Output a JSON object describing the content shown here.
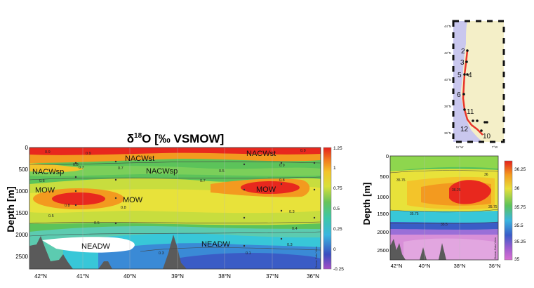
{
  "colors": {
    "red": "#e8281e",
    "orange": "#f39a1f",
    "yellow": "#f3ea2c",
    "green": "#5cc35a",
    "cyan": "#38c7d8",
    "blue": "#3a5cc6",
    "purple": "#9a4fc4",
    "magenta": "#d86fd0",
    "seafloor": "#5a5a5a",
    "land": "#f4efc8",
    "sea": "#c9c7ee",
    "track": "#e8362b"
  },
  "chart_data": [
    {
      "type": "heatmap",
      "title_parts": {
        "delta": "δ",
        "sup": "18",
        "rest": "O [‰ VSMOW]"
      },
      "ylabel": "Depth [m]",
      "xlabel": "",
      "x_ticks": [
        "42°N",
        "41°N",
        "40°N",
        "39°N",
        "38°N",
        "37°N",
        "36°N"
      ],
      "y_ticks": [
        "0",
        "500",
        "1000",
        "1500",
        "2000",
        "2500"
      ],
      "ylim": [
        0,
        2800
      ],
      "colorbar_ticks": [
        "1.25",
        "1",
        "0.75",
        "0.5",
        "0.25",
        "0",
        "-0.25"
      ],
      "colorbar_range": [
        -0.25,
        1.25
      ],
      "water_mass_labels": [
        "NACWst",
        "NACWsp",
        "NACWsp",
        "NACWst",
        "MOW",
        "MOW",
        "MOW",
        "NEADW",
        "NEADW"
      ],
      "contour_labels": [
        "0.9",
        "0.8",
        "0.9",
        "0.7",
        "0.7",
        "0.5",
        "0.6",
        "0.8",
        "0.7",
        "0.8",
        "0.5",
        "0.3",
        "0.5",
        "0.3",
        "0.1",
        "0.3",
        "0.4",
        "0.9",
        "0.8",
        "0.9"
      ],
      "watermark": "Ocean Data View"
    },
    {
      "type": "heatmap",
      "ylabel": "Depth [m]",
      "x_ticks": [
        "42°N",
        "40°N",
        "38°N",
        "36°N"
      ],
      "y_ticks": [
        "0",
        "500",
        "1000",
        "1500",
        "2000",
        "2500"
      ],
      "ylim": [
        0,
        2800
      ],
      "colorbar_ticks": [
        "36.25",
        "36",
        "35.75",
        "35.5",
        "35.25",
        "35"
      ],
      "colorbar_range": [
        35,
        36.3
      ],
      "contour_labels": [
        "35.75",
        "35.75",
        "36.25",
        "36",
        "35.5",
        "35.75"
      ],
      "watermark": "Ocean Data View"
    }
  ],
  "map": {
    "lat_labels": [
      "44°N",
      "42°N",
      "40°N",
      "38°N",
      "36°N"
    ],
    "lon_labels": [
      "11°W",
      "7°W"
    ],
    "stations": [
      "2",
      "3",
      "5",
      "4",
      "6",
      "11",
      "12",
      "10"
    ]
  }
}
